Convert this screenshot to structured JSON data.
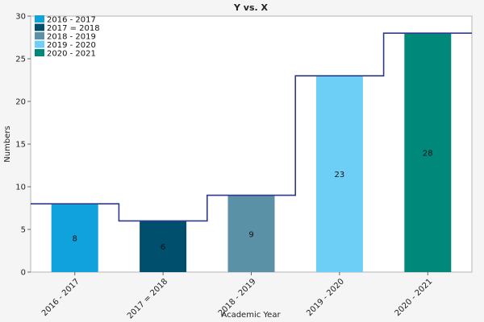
{
  "chart_data": {
    "type": "bar",
    "title": "Y vs. X",
    "xlabel": "Academic Year",
    "ylabel": "Numbers",
    "categories": [
      "2016 - 2017",
      "2017 = 2018",
      "2018 - 2019",
      "2019 - 2020",
      "2020 - 2021"
    ],
    "values": [
      8,
      6,
      9,
      23,
      28
    ],
    "colors": [
      "#0fa2dc",
      "#00506d",
      "#5b91a6",
      "#6ecff6",
      "#00897b"
    ],
    "step_line_color": "#2d3a8c",
    "ylim": [
      0,
      30
    ],
    "yticks": [
      0,
      5,
      10,
      15,
      20,
      25,
      30
    ],
    "grid": false,
    "legend": {
      "position": "top-left",
      "entries": [
        "2016 - 2017",
        "2017 = 2018",
        "2018 - 2019",
        "2019 - 2020",
        "2020 - 2021"
      ]
    }
  }
}
